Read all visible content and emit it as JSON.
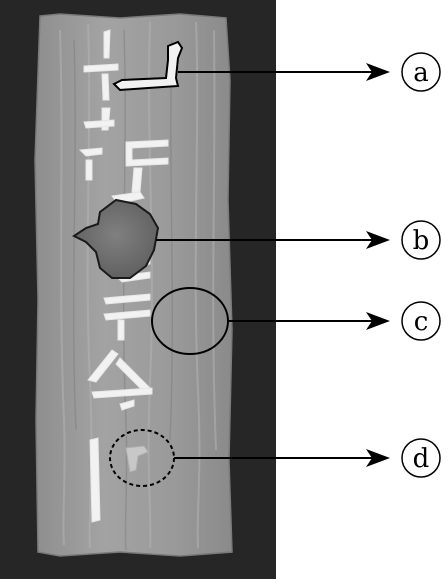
{
  "labels": [
    {
      "id": "a",
      "text": "a"
    },
    {
      "id": "b",
      "text": "b"
    },
    {
      "id": "c",
      "text": "c"
    },
    {
      "id": "d",
      "text": "d"
    }
  ],
  "colors": {
    "background_left": "#262626",
    "background_right": "#ffffff",
    "board": "#9b9b9b",
    "paint": "#f2f2f2",
    "stain": "#707070",
    "line": "#000000"
  }
}
